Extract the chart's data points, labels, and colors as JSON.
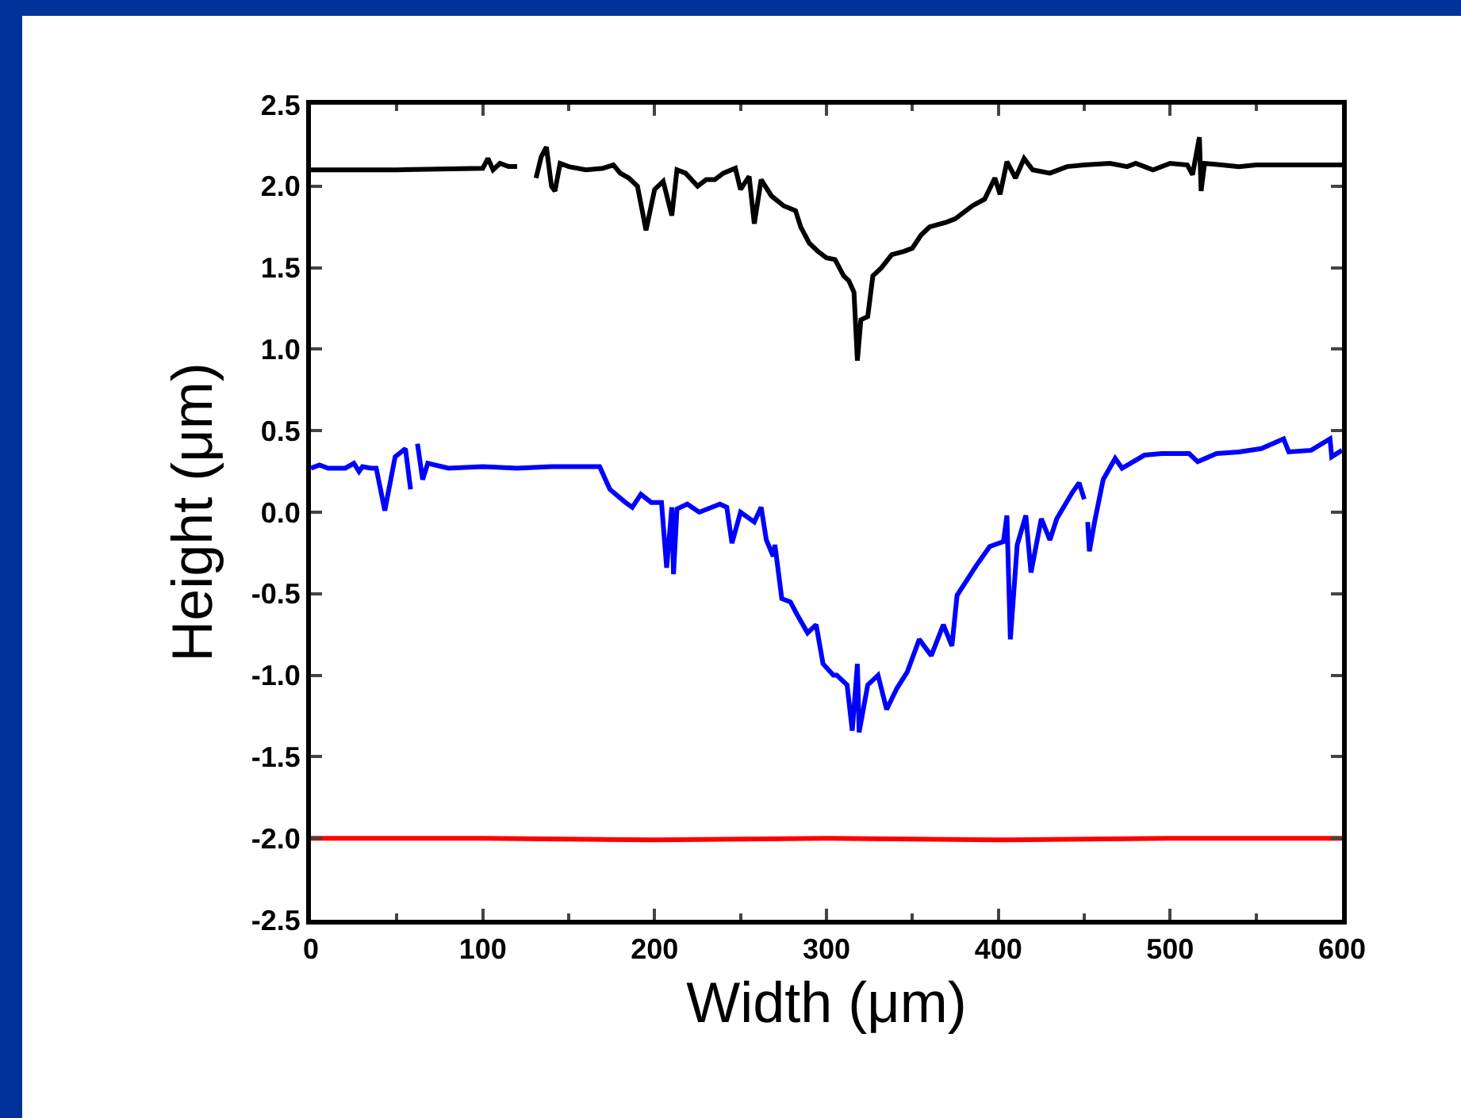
{
  "chart_data": {
    "type": "line",
    "xlabel": "Width (μm)",
    "ylabel": "Height (μm)",
    "xlim": [
      0,
      600
    ],
    "ylim": [
      -2.5,
      2.5
    ],
    "xticks": [
      0,
      100,
      200,
      300,
      400,
      500,
      600
    ],
    "yticks": [
      {
        "value": -2.5,
        "label": "-2.5"
      },
      {
        "value": -2,
        "label": "-2.0"
      },
      {
        "value": -1.5,
        "label": "-1.5"
      },
      {
        "value": -1,
        "label": "-1.0"
      },
      {
        "value": -0.5,
        "label": "-0.5"
      },
      {
        "value": 0,
        "label": "0.0"
      },
      {
        "value": 0.5,
        "label": "0.5"
      },
      {
        "value": 1,
        "label": "1.0"
      },
      {
        "value": 1.5,
        "label": "1.5"
      },
      {
        "value": 2,
        "label": "2.0"
      },
      {
        "value": 2.5,
        "label": "2.5"
      }
    ],
    "grid": false,
    "marker": "none",
    "line_style": "solid",
    "series": [
      {
        "color": "#000000",
        "x": [
          0,
          50,
          100,
          103,
          106,
          110,
          115,
          120,
          124,
          131,
          134,
          137,
          140,
          142,
          145,
          150,
          160,
          170,
          176,
          180,
          185,
          190,
          195,
          200,
          205,
          210,
          213,
          218,
          225,
          230,
          235,
          240,
          247,
          250,
          255,
          258,
          262,
          268,
          275,
          282,
          285,
          290,
          295,
          300,
          305,
          310,
          313,
          316,
          318,
          320,
          324,
          327,
          332,
          338,
          345,
          350,
          355,
          360,
          370,
          375,
          385,
          392,
          398,
          401,
          405,
          410,
          415,
          420,
          430,
          440,
          450,
          465,
          475,
          480,
          485,
          490,
          500,
          510,
          513,
          517,
          518,
          520,
          530,
          540,
          550,
          600
        ],
        "values": [
          2.1,
          2.1,
          2.11,
          2.17,
          2.1,
          2.14,
          2.12,
          2.12,
          null,
          2.05,
          2.18,
          2.24,
          2.0,
          1.97,
          2.14,
          2.12,
          2.1,
          2.11,
          2.13,
          2.08,
          2.05,
          2.0,
          1.73,
          1.98,
          2.03,
          1.82,
          2.1,
          2.08,
          2.0,
          2.04,
          2.04,
          2.08,
          2.11,
          1.98,
          2.06,
          1.77,
          2.04,
          1.94,
          1.88,
          1.85,
          1.75,
          1.65,
          1.6,
          1.56,
          1.55,
          1.45,
          1.42,
          1.35,
          0.93,
          1.18,
          1.2,
          1.45,
          1.5,
          1.58,
          1.6,
          1.62,
          1.7,
          1.75,
          1.78,
          1.8,
          1.88,
          1.92,
          2.05,
          1.95,
          2.15,
          2.05,
          2.17,
          2.1,
          2.08,
          2.12,
          2.13,
          2.14,
          2.12,
          2.14,
          2.12,
          2.1,
          2.14,
          2.13,
          2.07,
          2.3,
          1.97,
          2.14,
          2.13,
          2.12,
          2.13,
          2.13
        ]
      },
      {
        "color": "#0000ff",
        "x": [
          0,
          5,
          10,
          20,
          25,
          28,
          30,
          35,
          38,
          43,
          49,
          55,
          58,
          60,
          62,
          65,
          68,
          80,
          100,
          120,
          140,
          168,
          174,
          183,
          187,
          192,
          198,
          204,
          207,
          210,
          211,
          213,
          219,
          226,
          238,
          242,
          245,
          250,
          258,
          262,
          265,
          269,
          270,
          274,
          279,
          283,
          289,
          294,
          298,
          304,
          306,
          312,
          315,
          318,
          319,
          324,
          330,
          335,
          341,
          347,
          354,
          361,
          368,
          373,
          376,
          387,
          395,
          403,
          405,
          407,
          411,
          416,
          419,
          425,
          430,
          434,
          443,
          447,
          450,
          451,
          452,
          453,
          456,
          461,
          468,
          472,
          485,
          495,
          511,
          516,
          527,
          540,
          553,
          566,
          569,
          582,
          593,
          594,
          600
        ],
        "values": [
          0.27,
          0.29,
          0.27,
          0.27,
          0.3,
          0.25,
          0.28,
          0.27,
          0.27,
          0.01,
          0.34,
          0.39,
          0.14,
          null,
          0.42,
          0.2,
          0.3,
          0.27,
          0.28,
          0.27,
          0.28,
          0.28,
          0.14,
          0.06,
          0.03,
          0.11,
          0.06,
          0.06,
          -0.34,
          0.03,
          -0.38,
          0.02,
          0.05,
          0.0,
          0.05,
          0.03,
          -0.19,
          0.0,
          -0.06,
          0.03,
          -0.17,
          -0.27,
          -0.2,
          -0.53,
          -0.55,
          -0.63,
          -0.74,
          -0.69,
          -0.93,
          -1.0,
          -1.0,
          -1.06,
          -1.34,
          -0.93,
          -1.35,
          -1.06,
          -1.0,
          -1.21,
          -1.08,
          -0.98,
          -0.78,
          -0.88,
          -0.69,
          -0.82,
          -0.51,
          -0.33,
          -0.21,
          -0.18,
          -0.02,
          -0.78,
          -0.2,
          -0.02,
          -0.37,
          -0.04,
          -0.17,
          -0.04,
          0.12,
          0.18,
          0.08,
          null,
          -0.06,
          -0.24,
          -0.06,
          0.2,
          0.33,
          0.27,
          0.35,
          0.36,
          0.36,
          0.31,
          0.36,
          0.37,
          0.39,
          0.45,
          0.37,
          0.38,
          0.45,
          0.34,
          0.38
        ]
      },
      {
        "color": "#ff0000",
        "x": [
          0,
          100,
          200,
          300,
          400,
          500,
          600
        ],
        "values": [
          -2.0,
          -2.0,
          -2.01,
          -2.0,
          -2.01,
          -2.0,
          -2.0
        ]
      }
    ]
  }
}
